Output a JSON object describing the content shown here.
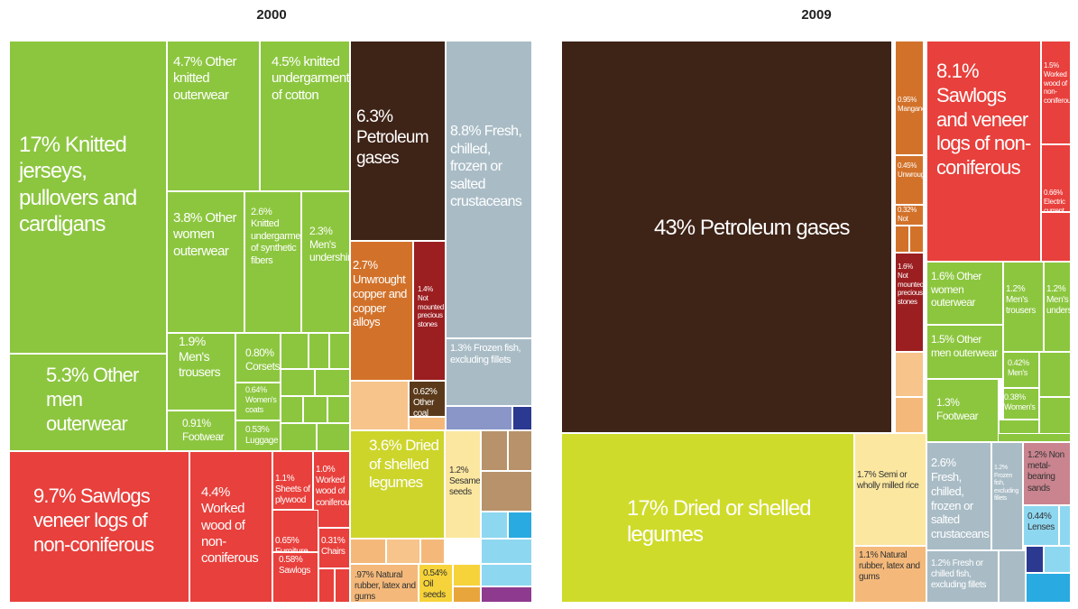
{
  "chart_data": [
    {
      "type": "treemap",
      "title": "2000",
      "categories": [
        "Knitted jerseys, pullovers and cardigans",
        "Other knitted outerwear",
        "knitted undergarments of cotton",
        "Other women outerwear",
        "Knitted undergarments of synthetic fibers",
        "Men's undershirt",
        "Other men outerwear",
        "Men's trousers",
        "Corsets",
        "Women's coats",
        "Footwear",
        "Luggage",
        "Sawlogs veneer logs of non-coniferous",
        "Worked wood of non-coniferous",
        "Sheets of plywood",
        "Worked wood of coniferous",
        "Furniture parts",
        "Chairs",
        "Sawlogs",
        "Petroleum gases",
        "Fresh, chilled, frozen or salted crustaceans",
        "Unwrought copper and copper alloys",
        "Not mounted precious stones",
        "Frozen fish, excluding fillets",
        "Other coal",
        "Dried of shelled legumes",
        "Sesame seeds",
        "Natural rubber, latex and gums",
        "Oil seeds"
      ],
      "values": [
        17,
        4.7,
        4.5,
        3.8,
        2.6,
        2.3,
        5.3,
        1.9,
        0.8,
        0.64,
        0.91,
        0.53,
        9.7,
        4.4,
        1.1,
        1.0,
        0.65,
        0.31,
        0.58,
        6.3,
        8.8,
        2.7,
        1.4,
        1.3,
        0.62,
        3.6,
        1.2,
        0.97,
        0.54
      ],
      "value_labels": [
        "17%",
        "4.7%",
        "4.5%",
        "3.8%",
        "2.6%",
        "2.3%",
        "5.3%",
        "1.9%",
        "0.80%",
        "0.64%",
        "0.91%",
        "0.53%",
        "9.7%",
        "4.4%",
        "1.1%",
        "1.0%",
        "0.65%",
        "0.31%",
        "0.58%",
        "6.3%",
        "8.8%",
        "2.7%",
        "1.4%",
        "1.3%",
        "0.62%",
        "3.6%",
        "1.2%",
        ".97%",
        "0.54%"
      ],
      "colors": [
        "#8cc63f",
        "#8cc63f",
        "#8cc63f",
        "#8cc63f",
        "#8cc63f",
        "#8cc63f",
        "#8cc63f",
        "#8cc63f",
        "#8cc63f",
        "#8cc63f",
        "#8cc63f",
        "#8cc63f",
        "#e8403c",
        "#e8403c",
        "#e8403c",
        "#e8403c",
        "#e8403c",
        "#e8403c",
        "#e8403c",
        "#3e2317",
        "#a9bcc6",
        "#d2722a",
        "#9b1e21",
        "#a9bcc6",
        "#5a3a1a",
        "#cdd52b",
        "#fbe7a0",
        "#f4b97a",
        "#f6d33a"
      ]
    },
    {
      "type": "treemap",
      "title": "2009",
      "categories": [
        "Petroleum gases",
        "Dried or shelled legumes",
        "Manganese",
        "Unwrought",
        "Not",
        "Not mounted precious stones",
        "Sawlogs and veneer logs of non-coniferous",
        "Worked wood of non-coniferous",
        "Electric current",
        "Other women outerwear",
        "Other men outerwear",
        "Footwear",
        "Men's trousers",
        "Men's undershirt",
        "Men's",
        "Women's",
        "Semi or wholly milled rice",
        "Natural rubber, latex and gums",
        "Fresh, chilled, frozen or salted crustaceans",
        "Frozen fish, excluding fillets",
        "Non metal-bearing sands",
        "Lenses",
        "Fresh or chilled fish, excluding fillets"
      ],
      "values": [
        43,
        17,
        0.95,
        0.45,
        0.32,
        1.6,
        8.1,
        1.5,
        0.66,
        1.6,
        1.5,
        1.3,
        1.2,
        1.2,
        0.42,
        0.38,
        1.7,
        1.1,
        2.6,
        1.2,
        1.2,
        0.44,
        1.2
      ],
      "value_labels": [
        "43%",
        "17%",
        "0.95%",
        "0.45%",
        "0.32%",
        "1.6%",
        "8.1%",
        "1.5%",
        "0.66%",
        "1.6%",
        "1.5%",
        "1.3%",
        "1.2%",
        "1.2%",
        "0.42%",
        "0.38%",
        "1.7%",
        "1.1%",
        "2.6%",
        "1.2%",
        "1.2%",
        "0.44%",
        "1.2%"
      ],
      "colors": [
        "#3e2317",
        "#cfdb2a",
        "#d2722a",
        "#d2722a",
        "#d2722a",
        "#9b1e21",
        "#e8403c",
        "#e8403c",
        "#e8403c",
        "#8cc63f",
        "#8cc63f",
        "#8cc63f",
        "#8cc63f",
        "#8cc63f",
        "#8cc63f",
        "#8cc63f",
        "#fbe7a0",
        "#f4b97a",
        "#a9bcc6",
        "#a9bcc6",
        "#c9848f",
        "#8ed7f0",
        "#a9bcc6"
      ]
    }
  ]
}
